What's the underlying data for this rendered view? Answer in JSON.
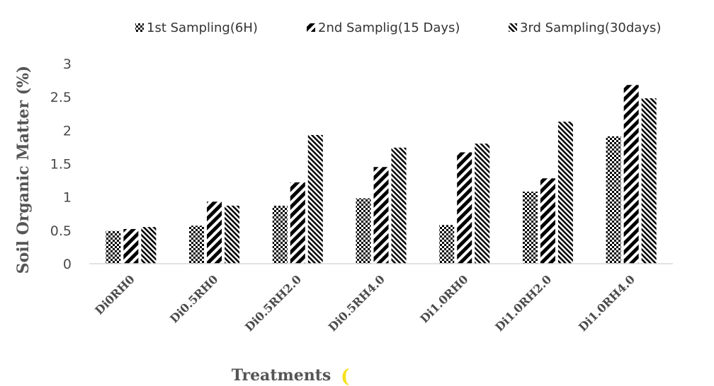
{
  "chart_data": {
    "type": "bar",
    "xlabel": "Treatments",
    "xlabel_suffix": "(",
    "ylabel": "Soil Organic Matter (%)",
    "ylim": [
      0,
      3
    ],
    "yticks": [
      "0",
      "0.5",
      "1",
      "1.5",
      "2",
      "2.5",
      "3"
    ],
    "grid": false,
    "legend_position": "top",
    "categories": [
      "Di0RH0",
      "Di0.5RH0",
      "Di0.5RH2.0",
      "Di0.5RH4.0",
      "Di1.0RH0",
      "Di1.0RH2.0",
      "Di1.0RH4.0"
    ],
    "series": [
      {
        "name": "1st Sampling(6H)",
        "pattern": "checker",
        "values": [
          0.49,
          0.57,
          0.87,
          0.98,
          0.58,
          1.08,
          1.91
        ]
      },
      {
        "name": "2nd Samplig(15 Days)",
        "pattern": "thick-diagonal",
        "values": [
          0.52,
          0.93,
          1.22,
          1.45,
          1.67,
          1.28,
          2.68
        ]
      },
      {
        "name": "3rd Sampling(30days)",
        "pattern": "thin-diagonal",
        "values": [
          0.55,
          0.87,
          1.93,
          1.74,
          1.8,
          2.13,
          2.48
        ]
      }
    ],
    "colors": {
      "ink": "#000000",
      "axis_text": "#4a4a4a",
      "axis_line": "#d9d9d9",
      "paren": "#f5e11a"
    }
  }
}
